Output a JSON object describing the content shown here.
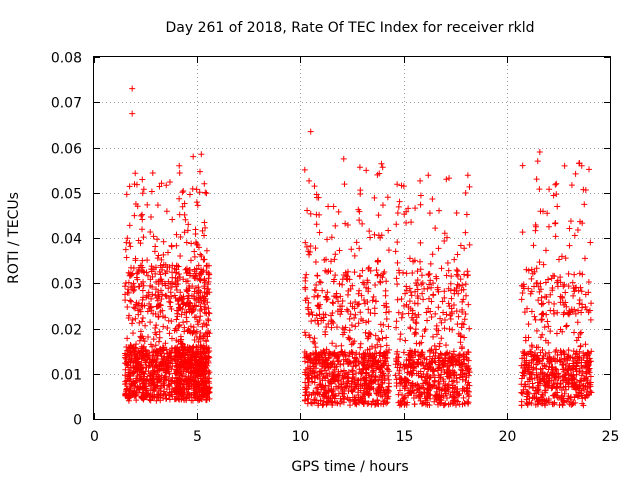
{
  "chart_data": {
    "type": "scatter",
    "title": "Day 261 of 2018, Rate Of TEC Index for receiver rkld",
    "xlabel": "GPS time / hours",
    "ylabel": "ROTI / TECUs",
    "xlim": [
      0,
      25
    ],
    "ylim": [
      0,
      0.08
    ],
    "x_ticks": [
      "0",
      "5",
      "10",
      "15",
      "20",
      "25"
    ],
    "x_tick_values": [
      0,
      5,
      10,
      15,
      20,
      25
    ],
    "y_ticks": [
      "0",
      "0.01",
      "0.02",
      "0.03",
      "0.04",
      "0.05",
      "0.06",
      "0.07",
      "0.08"
    ],
    "y_tick_values": [
      0,
      0.01,
      0.02,
      0.03,
      0.04,
      0.05,
      0.06,
      0.07,
      0.08
    ],
    "grid": true,
    "marker": "+",
    "color": "#ff0000",
    "series": [
      {
        "name": "ROTI",
        "clusters": [
          {
            "x_start": 1.5,
            "x_end": 3.8,
            "y_base": 0.004,
            "y_max": 0.055,
            "count": 700
          },
          {
            "x_start": 3.9,
            "x_end": 5.6,
            "y_base": 0.004,
            "y_max": 0.058,
            "count": 800
          },
          {
            "x_start": 10.2,
            "x_end": 14.3,
            "y_base": 0.003,
            "y_max": 0.057,
            "count": 900
          },
          {
            "x_start": 14.6,
            "x_end": 18.2,
            "y_base": 0.003,
            "y_max": 0.054,
            "count": 700
          },
          {
            "x_start": 20.7,
            "x_end": 24.1,
            "y_base": 0.003,
            "y_max": 0.057,
            "count": 650
          }
        ],
        "outliers": [
          {
            "x": 1.85,
            "y": 0.073
          },
          {
            "x": 1.85,
            "y": 0.0675
          },
          {
            "x": 10.5,
            "y": 0.0635
          },
          {
            "x": 21.6,
            "y": 0.059
          },
          {
            "x": 21.5,
            "y": 0.057
          },
          {
            "x": 22.4,
            "y": 0.052
          },
          {
            "x": 5.2,
            "y": 0.0585
          },
          {
            "x": 12.1,
            "y": 0.0575
          },
          {
            "x": 23.5,
            "y": 0.0565
          }
        ]
      }
    ]
  }
}
